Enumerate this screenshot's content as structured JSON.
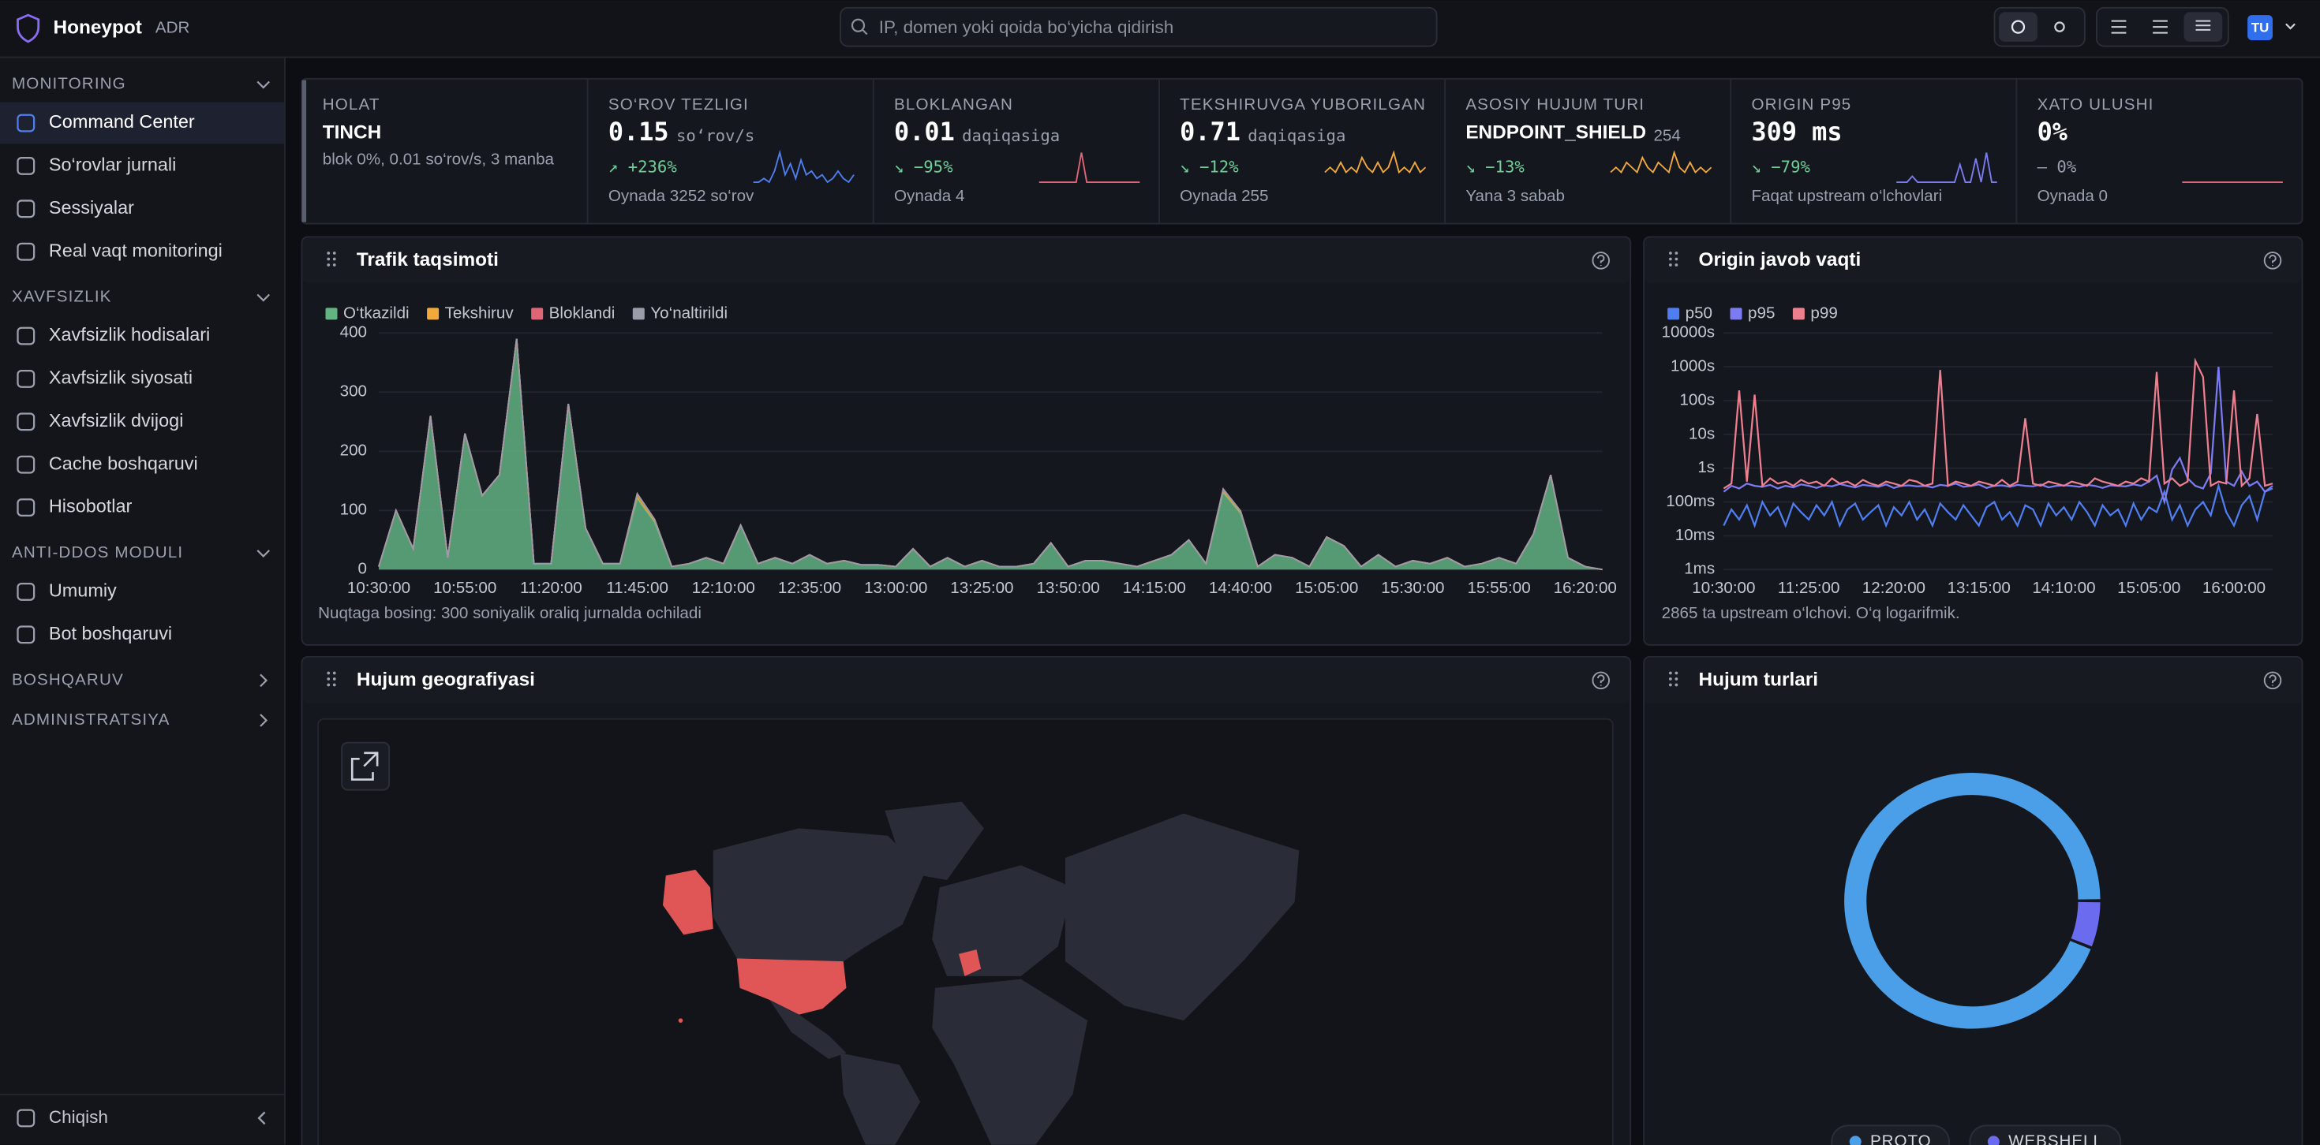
{
  "header": {
    "brand": "Honeypot",
    "badge": "ADR",
    "search_placeholder": "IP, domen yoki qoida bo‘yicha qidirish",
    "avatar": "TU"
  },
  "sidebar": {
    "sections": [
      {
        "title": "MONITORING",
        "items": [
          "Command Center",
          "So‘rovlar jurnali",
          "Sessiyalar",
          "Real vaqt monitoringi"
        ]
      },
      {
        "title": "XAVFSIZLIK",
        "items": [
          "Xavfsizlik hodisalari",
          "Xavfsizlik siyosati",
          "Xavfsizlik dvijogi",
          "Cache boshqaruvi",
          "Hisobotlar"
        ]
      },
      {
        "title": "ANTI-DDOS MODULI",
        "items": [
          "Umumiy",
          "Bot boshqaruvi"
        ]
      },
      {
        "title": "BOSHQARUV",
        "items": []
      },
      {
        "title": "ADMINISTRATSIYA",
        "items": []
      }
    ],
    "logout": "Chiqish"
  },
  "kpis": [
    {
      "label": "HOLAT",
      "value": "TINCH",
      "note": "blok 0%, 0.01 so‘rov/s, 3 manba"
    },
    {
      "label": "SO‘ROV TEZLIGI",
      "value": "0.15",
      "unit": "so‘rov/s",
      "delta": "↗ +236%",
      "delta_color": "#6fcf97",
      "note": "Oynada 3252 so‘rov",
      "spark_color": "#4f7ef0",
      "spark": [
        0,
        0,
        1,
        0,
        3,
        8,
        2,
        5,
        1,
        6,
        2,
        3,
        1,
        2,
        0,
        1,
        3,
        1,
        0,
        2
      ]
    },
    {
      "label": "BLOKLANGAN",
      "value": "0.01",
      "unit": "daqiqasiga",
      "delta": "↘ −95%",
      "delta_color": "#6fcf97",
      "note": "Oynada 4",
      "spark_color": "#e06676",
      "spark": [
        0,
        0,
        0,
        0,
        0,
        0,
        0,
        0,
        1,
        0,
        0,
        0,
        0,
        0,
        0,
        0,
        0,
        0,
        0,
        0
      ]
    },
    {
      "label": "TEKSHIRUVGA YUBORILGAN",
      "value": "0.71",
      "unit": "daqiqasiga",
      "delta": "↘ −12%",
      "delta_color": "#6fcf97",
      "note": "Oynada 255",
      "spark_color": "#f2a93b",
      "spark": [
        2,
        3,
        2,
        4,
        2,
        3,
        2,
        5,
        3,
        2,
        4,
        2,
        3,
        6,
        2,
        3,
        2,
        4,
        2,
        3
      ]
    },
    {
      "label": "ASOSIY HUJUM TURI",
      "value": "ENDPOINT_SHIELD",
      "unit": "254",
      "delta": "↘ −13%",
      "delta_color": "#6fcf97",
      "note": "Yana 3 sabab",
      "spark_color": "#f2a93b",
      "spark": [
        2,
        3,
        2,
        4,
        3,
        2,
        5,
        3,
        2,
        4,
        3,
        2,
        6,
        3,
        2,
        4,
        2,
        3,
        2,
        3
      ]
    },
    {
      "label": "ORIGIN P95",
      "value": "309 ms",
      "delta": "↘ −79%",
      "delta_color": "#6fcf97",
      "note": "Faqat upstream o‘lchovlari",
      "spark_color": "#7b7bf2",
      "spark": [
        0,
        0,
        0,
        1,
        0,
        0,
        0,
        0,
        0,
        0,
        0,
        0,
        3,
        0,
        0,
        4,
        0,
        5,
        0,
        0
      ]
    },
    {
      "label": "XATO ULUSHI",
      "value": "0%",
      "delta": "— 0%",
      "delta_color": "#9aa0ad",
      "note": "Oynada 0",
      "spark_color": "#e06676",
      "spark": [
        0,
        0,
        0,
        0,
        0,
        0,
        0,
        0,
        0,
        0,
        0,
        0,
        0,
        0,
        0,
        0,
        0,
        0,
        0,
        0
      ]
    }
  ],
  "map": {
    "title": "Hujum geografiyasi"
  },
  "chart_data": [
    {
      "type": "area",
      "stacked": true,
      "title": "Trafik taqsimoti",
      "note": "Nuqtaga bosing: 300 soniyalik oraliq jurnalda ochiladi",
      "grid": true,
      "x": [
        "10:30:00",
        "10:35:00",
        "10:40:00",
        "10:45:00",
        "10:50:00",
        "10:55:00",
        "11:00:00",
        "11:05:00",
        "11:10:00",
        "11:15:00",
        "11:20:00",
        "11:25:00",
        "11:30:00",
        "11:35:00",
        "11:40:00",
        "11:45:00",
        "11:50:00",
        "11:55:00",
        "12:00:00",
        "12:05:00",
        "12:10:00",
        "12:15:00",
        "12:20:00",
        "12:25:00",
        "12:30:00",
        "12:35:00",
        "12:40:00",
        "12:45:00",
        "12:50:00",
        "12:55:00",
        "13:00:00",
        "13:05:00",
        "13:10:00",
        "13:15:00",
        "13:20:00",
        "13:25:00",
        "13:30:00",
        "13:35:00",
        "13:40:00",
        "13:45:00",
        "13:50:00",
        "13:55:00",
        "14:00:00",
        "14:05:00",
        "14:10:00",
        "14:15:00",
        "14:20:00",
        "14:25:00",
        "14:30:00",
        "14:35:00",
        "14:40:00",
        "14:45:00",
        "14:50:00",
        "14:55:00",
        "15:00:00",
        "15:05:00",
        "15:10:00",
        "15:15:00",
        "15:20:00",
        "15:25:00",
        "15:30:00",
        "15:35:00",
        "15:40:00",
        "15:45:00",
        "15:50:00",
        "15:55:00",
        "16:00:00",
        "16:05:00",
        "16:10:00",
        "16:15:00",
        "16:20:00",
        "16:25:00"
      ],
      "xticks": [
        "10:30:00",
        "10:55:00",
        "11:20:00",
        "11:45:00",
        "12:10:00",
        "12:35:00",
        "13:00:00",
        "13:25:00",
        "13:50:00",
        "14:15:00",
        "14:40:00",
        "15:05:00",
        "15:30:00",
        "15:55:00",
        "16:20:00"
      ],
      "ylim": [
        0,
        400
      ],
      "yticks": [
        0,
        100,
        200,
        300,
        400
      ],
      "series": [
        {
          "name": "O‘tkazildi",
          "color": "#62b283",
          "values": [
            5,
            100,
            35,
            260,
            20,
            230,
            125,
            160,
            390,
            10,
            10,
            280,
            70,
            10,
            10,
            120,
            80,
            5,
            10,
            20,
            10,
            75,
            10,
            20,
            10,
            25,
            10,
            15,
            8,
            8,
            5,
            35,
            5,
            20,
            5,
            15,
            5,
            5,
            10,
            45,
            5,
            15,
            15,
            10,
            5,
            15,
            25,
            50,
            10,
            130,
            95,
            5,
            25,
            20,
            5,
            55,
            40,
            5,
            25,
            5,
            15,
            10,
            20,
            5,
            10,
            20,
            10,
            60,
            160,
            20,
            5,
            0
          ]
        },
        {
          "name": "Tekshiruv",
          "color": "#f2a93b",
          "values": [
            0,
            0,
            0,
            0,
            0,
            0,
            0,
            0,
            0,
            0,
            0,
            0,
            0,
            0,
            0,
            8,
            5,
            0,
            0,
            0,
            0,
            0,
            0,
            0,
            0,
            0,
            0,
            0,
            0,
            0,
            0,
            0,
            0,
            0,
            0,
            0,
            0,
            0,
            0,
            0,
            0,
            0,
            0,
            0,
            0,
            0,
            0,
            0,
            0,
            6,
            4,
            0,
            0,
            0,
            0,
            0,
            0,
            0,
            0,
            0,
            0,
            0,
            0,
            0,
            0,
            0,
            0,
            0,
            0,
            0,
            0,
            0
          ]
        },
        {
          "name": "Bloklandi",
          "color": "#e06676",
          "values": [
            0,
            0,
            0,
            0,
            0,
            0,
            0,
            0,
            0,
            0,
            0,
            0,
            0,
            0,
            0,
            0,
            0,
            0,
            0,
            0,
            0,
            0,
            0,
            0,
            0,
            0,
            0,
            0,
            0,
            0,
            0,
            0,
            0,
            0,
            0,
            0,
            0,
            0,
            0,
            0,
            0,
            0,
            0,
            0,
            0,
            0,
            0,
            0,
            0,
            0,
            0,
            0,
            0,
            0,
            0,
            0,
            0,
            0,
            0,
            0,
            0,
            0,
            0,
            0,
            0,
            0,
            0,
            0,
            0,
            0,
            0,
            0
          ]
        },
        {
          "name": "Yo‘naltirildi",
          "color": "#9a9caa",
          "values": [
            0,
            0,
            0,
            0,
            0,
            0,
            0,
            0,
            0,
            0,
            0,
            0,
            0,
            0,
            0,
            0,
            0,
            0,
            0,
            0,
            0,
            0,
            0,
            0,
            0,
            0,
            0,
            0,
            0,
            0,
            0,
            0,
            0,
            0,
            0,
            0,
            0,
            0,
            0,
            0,
            0,
            0,
            0,
            0,
            0,
            0,
            0,
            0,
            0,
            0,
            0,
            0,
            0,
            0,
            0,
            0,
            0,
            0,
            0,
            0,
            0,
            0,
            0,
            0,
            0,
            0,
            0,
            0,
            0,
            0,
            0,
            0
          ]
        }
      ]
    },
    {
      "type": "line",
      "log": true,
      "title": "Origin javob vaqti",
      "note": "2865 ta upstream o‘lchovi. O‘q logarifmik.",
      "grid": true,
      "x": [
        "10:30:00",
        "10:35:00",
        "10:40:00",
        "10:45:00",
        "10:50:00",
        "10:55:00",
        "11:00:00",
        "11:05:00",
        "11:10:00",
        "11:15:00",
        "11:20:00",
        "11:25:00",
        "11:30:00",
        "11:35:00",
        "11:40:00",
        "11:45:00",
        "11:50:00",
        "11:55:00",
        "12:00:00",
        "12:05:00",
        "12:10:00",
        "12:15:00",
        "12:20:00",
        "12:25:00",
        "12:30:00",
        "12:35:00",
        "12:40:00",
        "12:45:00",
        "12:50:00",
        "12:55:00",
        "13:00:00",
        "13:05:00",
        "13:10:00",
        "13:15:00",
        "13:20:00",
        "13:25:00",
        "13:30:00",
        "13:35:00",
        "13:40:00",
        "13:45:00",
        "13:50:00",
        "13:55:00",
        "14:00:00",
        "14:05:00",
        "14:10:00",
        "14:15:00",
        "14:20:00",
        "14:25:00",
        "14:30:00",
        "14:35:00",
        "14:40:00",
        "14:45:00",
        "14:50:00",
        "14:55:00",
        "15:00:00",
        "15:05:00",
        "15:10:00",
        "15:15:00",
        "15:20:00",
        "15:25:00",
        "15:30:00",
        "15:35:00",
        "15:40:00",
        "15:45:00",
        "15:50:00",
        "15:55:00",
        "16:00:00",
        "16:05:00",
        "16:10:00",
        "16:15:00",
        "16:20:00",
        "16:25:00"
      ],
      "xticks": [
        "10:30:00",
        "11:25:00",
        "12:20:00",
        "13:15:00",
        "14:10:00",
        "15:05:00",
        "16:00:00"
      ],
      "ylim": [
        0.001,
        10000
      ],
      "yticks": [
        {
          "value": 0.001,
          "label": "1ms"
        },
        {
          "value": 0.01,
          "label": "10ms"
        },
        {
          "value": 0.1,
          "label": "100ms"
        },
        {
          "value": 1,
          "label": "1s"
        },
        {
          "value": 10,
          "label": "10s"
        },
        {
          "value": 100,
          "label": "100s"
        },
        {
          "value": 1000,
          "label": "1000s"
        },
        {
          "value": 10000,
          "label": "10000s"
        }
      ],
      "series": [
        {
          "name": "p50",
          "color": "#4f7ef0",
          "values": [
            0.02,
            0.06,
            0.03,
            0.08,
            0.02,
            0.1,
            0.04,
            0.07,
            0.02,
            0.09,
            0.05,
            0.03,
            0.08,
            0.04,
            0.1,
            0.02,
            0.06,
            0.09,
            0.03,
            0.05,
            0.08,
            0.02,
            0.07,
            0.04,
            0.1,
            0.03,
            0.06,
            0.02,
            0.09,
            0.05,
            0.03,
            0.08,
            0.04,
            0.02,
            0.07,
            0.1,
            0.03,
            0.05,
            0.02,
            0.08,
            0.06,
            0.02,
            0.09,
            0.04,
            0.07,
            0.03,
            0.1,
            0.05,
            0.02,
            0.08,
            0.04,
            0.06,
            0.02,
            0.09,
            0.03,
            0.07,
            0.05,
            0.2,
            0.03,
            0.08,
            0.02,
            0.06,
            0.1,
            0.04,
            0.3,
            0.05,
            0.02,
            0.08,
            0.15,
            0.03,
            0.2,
            0.25
          ]
        },
        {
          "name": "p95",
          "color": "#7b7bf2",
          "values": [
            0.2,
            0.3,
            0.25,
            0.35,
            0.3,
            0.28,
            0.32,
            0.25,
            0.3,
            0.27,
            0.33,
            0.3,
            0.26,
            0.31,
            0.29,
            0.34,
            0.3,
            0.27,
            0.32,
            0.3,
            0.28,
            0.33,
            0.26,
            0.3,
            0.31,
            0.29,
            0.3,
            0.27,
            0.32,
            0.3,
            0.35,
            0.28,
            0.3,
            0.33,
            0.26,
            0.3,
            0.31,
            0.28,
            0.32,
            0.3,
            0.29,
            0.33,
            0.27,
            0.3,
            0.31,
            0.3,
            0.28,
            0.32,
            0.3,
            0.26,
            0.31,
            0.3,
            0.29,
            0.33,
            0.3,
            0.4,
            0.6,
            0.1,
            0.9,
            2,
            0.5,
            0.3,
            0.25,
            0.7,
            1000,
            0.4,
            0.3,
            0.8,
            0.3,
            0.4,
            0.2,
            0.3
          ]
        },
        {
          "name": "p99",
          "color": "#ee7f8f",
          "values": [
            0.25,
            0.35,
            200,
            0.4,
            150,
            0.3,
            0.5,
            0.35,
            0.4,
            0.3,
            0.45,
            0.35,
            0.4,
            0.3,
            0.5,
            0.35,
            0.4,
            0.3,
            0.45,
            0.35,
            0.3,
            0.4,
            0.35,
            0.3,
            0.45,
            0.4,
            0.3,
            0.35,
            800,
            0.3,
            0.4,
            0.35,
            0.3,
            0.4,
            0.35,
            0.3,
            0.45,
            0.3,
            0.4,
            30,
            0.35,
            0.3,
            0.4,
            0.35,
            0.3,
            0.4,
            0.35,
            0.3,
            0.5,
            0.4,
            0.35,
            0.3,
            0.4,
            0.35,
            0.5,
            0.4,
            700,
            0.35,
            0.5,
            0.3,
            0.4,
            1500,
            500,
            0.3,
            0.4,
            0.35,
            200,
            0.3,
            0.5,
            40,
            0.3,
            0.35
          ]
        }
      ]
    },
    {
      "type": "donut",
      "title": "Hujum turlari",
      "categories": [
        "PROTO",
        "WEBSHELL"
      ],
      "values": [
        94,
        6
      ],
      "colors": [
        "#4a9fe8",
        "#6b6bf0"
      ]
    }
  ]
}
